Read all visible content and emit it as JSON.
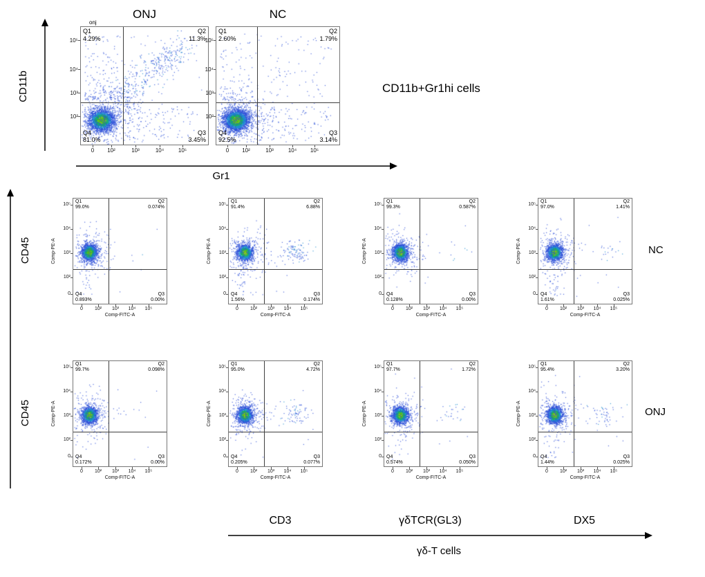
{
  "top_section": {
    "y_axis": "CD11b",
    "x_axis": "Gr1",
    "side_note": "CD11b+Gr1hi cells"
  },
  "grid_section": {
    "y_axis": "CD45",
    "row_labels": [
      "NC",
      "ONJ"
    ],
    "col_labels": [
      "CD3",
      "γδTCR(GL3)",
      "DX5"
    ],
    "bottom_arrow_label": "γδ-T cells",
    "plot_y_axis": "Comp-PE-A",
    "plot_x_axis": "Comp-FITC-A"
  },
  "chart_data": [
    {
      "id": "onj-cd11b-gr1",
      "type": "scatter",
      "panel": "top",
      "title": "ONJ",
      "sample_label": "onj",
      "xlabel": "Gr1",
      "ylabel": "CD11b",
      "x_ticks": [
        "0",
        "10²",
        "10³",
        "10⁴",
        "10⁵"
      ],
      "y_ticks": [
        "10²",
        "10³",
        "10⁴",
        "10⁵"
      ],
      "quadrants": {
        "Q1": "4.29%",
        "Q2": "11.3%",
        "Q3": "3.45%",
        "Q4": "81.0%"
      }
    },
    {
      "id": "nc-cd11b-gr1",
      "type": "scatter",
      "panel": "top",
      "title": "NC",
      "xlabel": "Gr1",
      "ylabel": "CD11b",
      "x_ticks": [
        "0",
        "10²",
        "10³",
        "10⁴",
        "10⁵"
      ],
      "y_ticks": [
        "10²",
        "10³",
        "10⁴",
        "10⁵"
      ],
      "quadrants": {
        "Q1": "2.60%",
        "Q2": "1.79%",
        "Q3": "3.14%",
        "Q4": "92.5%"
      }
    },
    {
      "id": "nc-control",
      "type": "scatter",
      "panel": "grid",
      "group": "NC",
      "marker": "",
      "xlabel": "Comp-FITC-A",
      "ylabel": "Comp-PE-A",
      "x_ticks": [
        "0",
        "10²",
        "10³",
        "10⁴",
        "10⁵"
      ],
      "y_ticks": [
        "0",
        "10²",
        "10³",
        "10⁴",
        "10⁵"
      ],
      "quadrants": {
        "Q1": "99.0%",
        "Q2": "0.074%",
        "Q3": "0.00%",
        "Q4": "0.893%"
      }
    },
    {
      "id": "nc-cd3",
      "type": "scatter",
      "panel": "grid",
      "group": "NC",
      "marker": "CD3",
      "xlabel": "Comp-FITC-A",
      "ylabel": "Comp-PE-A",
      "x_ticks": [
        "0",
        "10²",
        "10³",
        "10⁴",
        "10⁵"
      ],
      "y_ticks": [
        "0",
        "10²",
        "10³",
        "10⁴",
        "10⁵"
      ],
      "quadrants": {
        "Q1": "91.4%",
        "Q2": "6.88%",
        "Q3": "0.174%",
        "Q4": "1.56%"
      }
    },
    {
      "id": "nc-gdtcr-gl3",
      "type": "scatter",
      "panel": "grid",
      "group": "NC",
      "marker": "γδTCR(GL3)",
      "xlabel": "Comp-FITC-A",
      "ylabel": "Comp-PE-A",
      "x_ticks": [
        "0",
        "10²",
        "10³",
        "10⁴",
        "10⁵"
      ],
      "y_ticks": [
        "0",
        "10²",
        "10³",
        "10⁴",
        "10⁵"
      ],
      "quadrants": {
        "Q1": "99.3%",
        "Q2": "0.587%",
        "Q3": "0.00%",
        "Q4": "0.128%"
      }
    },
    {
      "id": "nc-dx5",
      "type": "scatter",
      "panel": "grid",
      "group": "NC",
      "marker": "DX5",
      "xlabel": "Comp-FITC-A",
      "ylabel": "Comp-PE-A",
      "x_ticks": [
        "0",
        "10²",
        "10³",
        "10⁴",
        "10⁵"
      ],
      "y_ticks": [
        "0",
        "10²",
        "10³",
        "10⁴",
        "10⁵"
      ],
      "quadrants": {
        "Q1": "97.0%",
        "Q2": "1.41%",
        "Q3": "0.025%",
        "Q4": "1.61%"
      }
    },
    {
      "id": "onj-control",
      "type": "scatter",
      "panel": "grid",
      "group": "ONJ",
      "marker": "",
      "xlabel": "Comp-FITC-A",
      "ylabel": "Comp-PE-A",
      "x_ticks": [
        "0",
        "10²",
        "10³",
        "10⁴",
        "10⁵"
      ],
      "y_ticks": [
        "0",
        "10²",
        "10³",
        "10⁴",
        "10⁵"
      ],
      "quadrants": {
        "Q1": "99.7%",
        "Q2": "0.098%",
        "Q3": "0.00%",
        "Q4": "0.172%"
      }
    },
    {
      "id": "onj-cd3",
      "type": "scatter",
      "panel": "grid",
      "group": "ONJ",
      "marker": "CD3",
      "xlabel": "Comp-FITC-A",
      "ylabel": "Comp-PE-A",
      "x_ticks": [
        "0",
        "10²",
        "10³",
        "10⁴",
        "10⁵"
      ],
      "y_ticks": [
        "0",
        "10²",
        "10³",
        "10⁴",
        "10⁵"
      ],
      "quadrants": {
        "Q1": "95.0%",
        "Q2": "4.72%",
        "Q3": "0.077%",
        "Q4": "0.205%"
      }
    },
    {
      "id": "onj-gdtcr-gl3",
      "type": "scatter",
      "panel": "grid",
      "group": "ONJ",
      "marker": "γδTCR(GL3)",
      "xlabel": "Comp-FITC-A",
      "ylabel": "Comp-PE-A",
      "x_ticks": [
        "0",
        "10²",
        "10³",
        "10⁴",
        "10⁵"
      ],
      "y_ticks": [
        "0",
        "10²",
        "10³",
        "10⁴",
        "10⁵"
      ],
      "quadrants": {
        "Q1": "97.7%",
        "Q2": "1.72%",
        "Q3": "0.050%",
        "Q4": "0.574%"
      }
    },
    {
      "id": "onj-dx5",
      "type": "scatter",
      "panel": "grid",
      "group": "ONJ",
      "marker": "DX5",
      "xlabel": "Comp-FITC-A",
      "ylabel": "Comp-PE-A",
      "x_ticks": [
        "0",
        "10²",
        "10³",
        "10⁴",
        "10⁵"
      ],
      "y_ticks": [
        "0",
        "10²",
        "10³",
        "10⁴",
        "10⁵"
      ],
      "quadrants": {
        "Q1": "95.4%",
        "Q2": "3.20%",
        "Q3": "0.025%",
        "Q4": "1.44%"
      }
    }
  ]
}
